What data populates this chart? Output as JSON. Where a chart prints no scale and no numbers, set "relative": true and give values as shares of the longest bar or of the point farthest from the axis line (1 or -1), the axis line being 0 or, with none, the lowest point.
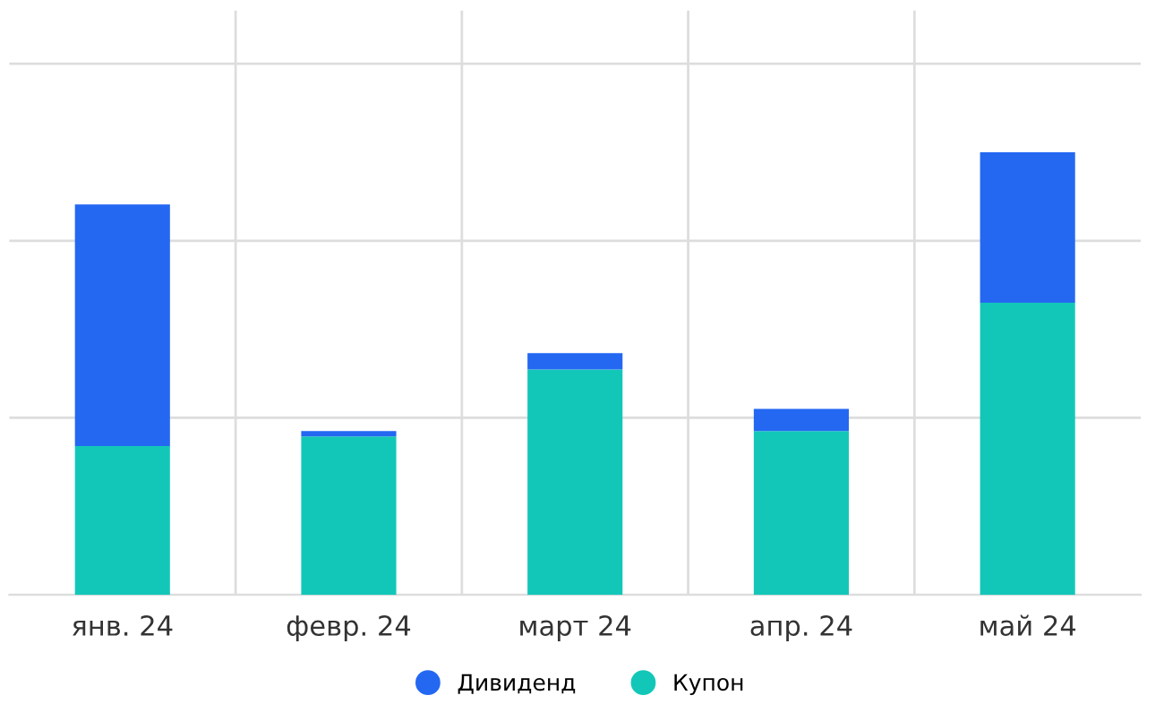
{
  "chart_data": {
    "type": "bar",
    "stacked": true,
    "relative": true,
    "grid": true,
    "legend": "bottom",
    "categories": [
      "янв. 24",
      "февр. 24",
      "март 24",
      "апр. 24",
      "май 24"
    ],
    "series": [
      {
        "name": "Купон",
        "color": "#13c7b8",
        "values": [
          0.336,
          0.358,
          0.509,
          0.37,
          0.66
        ]
      },
      {
        "name": "Дивиденд",
        "color": "#2468f2",
        "values": [
          0.546,
          0.012,
          0.037,
          0.05,
          0.34
        ]
      }
    ]
  }
}
